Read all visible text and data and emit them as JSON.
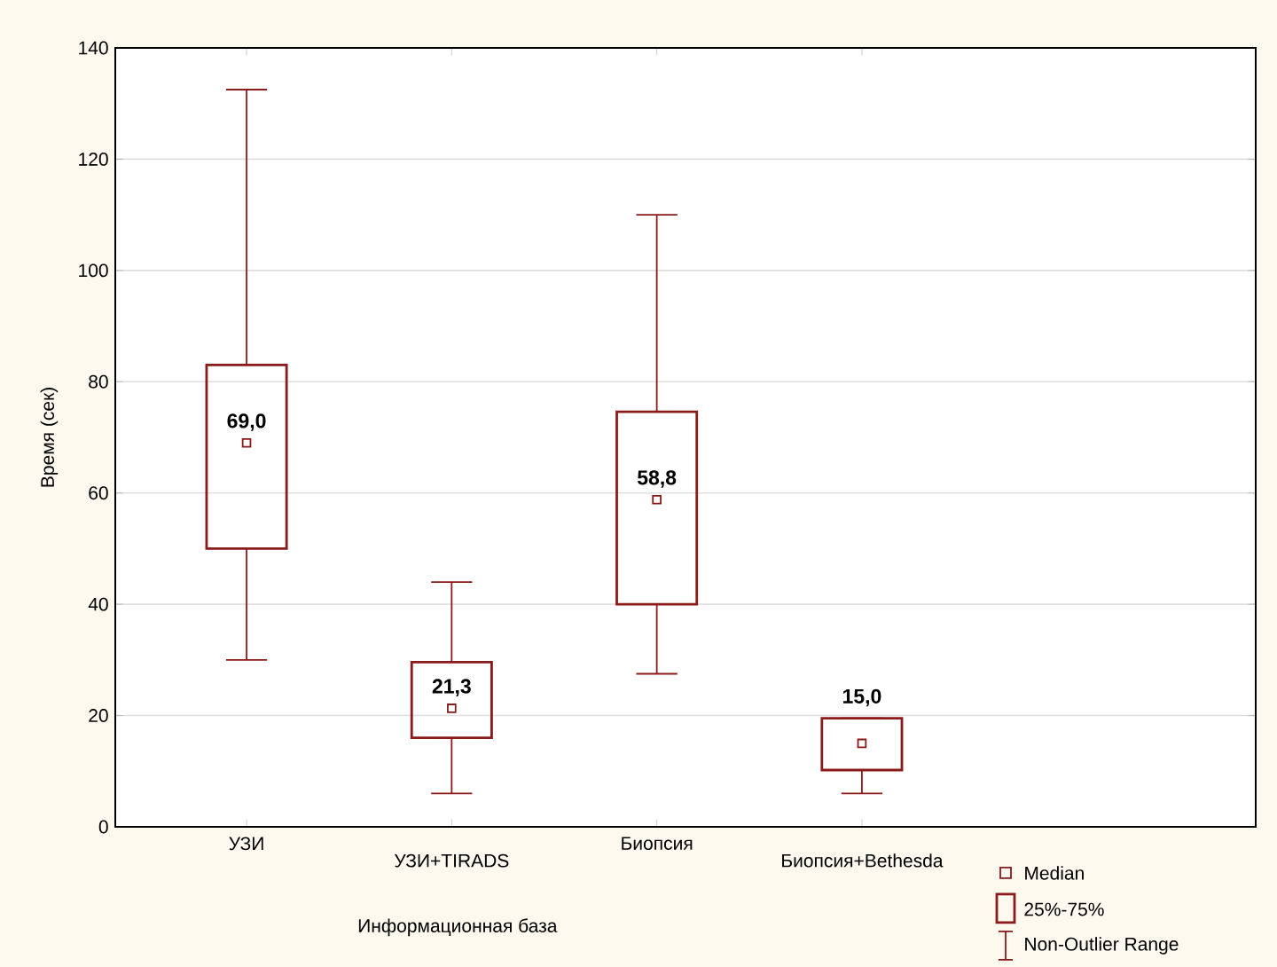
{
  "chart_data": {
    "type": "box",
    "xlabel": "Информационная база",
    "ylabel": "Время (сек)",
    "categories": [
      "УЗИ",
      "УЗИ+TIRADS",
      "Биопсия",
      "Биопсия+Bethesda"
    ],
    "boxes": [
      {
        "low": 30,
        "q1": 50,
        "median": 69.0,
        "q3": 83,
        "high": 132.5
      },
      {
        "low": 6,
        "q1": 16,
        "median": 21.3,
        "q3": 29.6,
        "high": 44
      },
      {
        "low": 27.5,
        "q1": 40,
        "median": 58.8,
        "q3": 74.6,
        "high": 110
      },
      {
        "low": 6,
        "q1": 10.2,
        "median": 15.0,
        "q3": 19.5,
        "high": 19.5
      }
    ],
    "value_labels": [
      "69,0",
      "21,3",
      "58,8",
      "15,0"
    ],
    "color": "#8b1a1a",
    "ylim": [
      0,
      140
    ],
    "yticks": [
      0,
      20,
      40,
      60,
      80,
      100,
      120,
      140
    ],
    "grid": "y",
    "marker": "square",
    "annotations": [
      "Median",
      "25%-75%",
      "Non-Outlier Range"
    ]
  }
}
